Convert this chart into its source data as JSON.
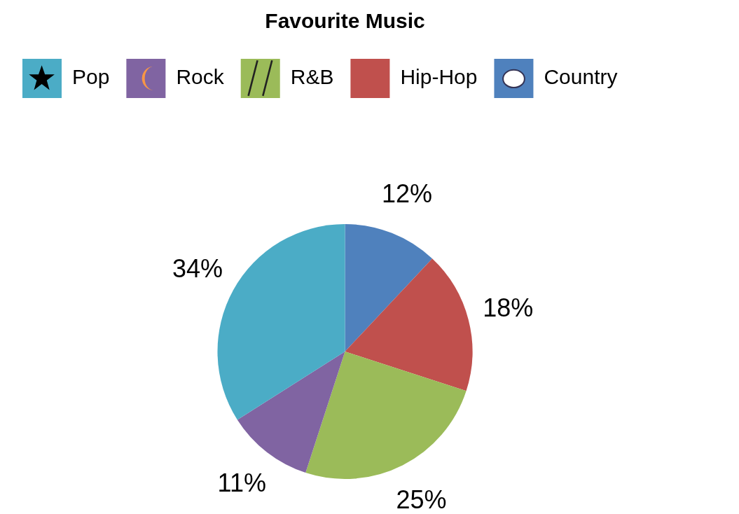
{
  "chart_data": {
    "type": "pie",
    "title": "Favourite Music",
    "categories": [
      "Pop",
      "Rock",
      "R&B",
      "Hip-Hop",
      "Country"
    ],
    "values": [
      34,
      11,
      25,
      18,
      12
    ],
    "colors": [
      "#4bacc6",
      "#8064a2",
      "#9bbb59",
      "#c0504d",
      "#4f81bd"
    ],
    "value_labels": [
      "34%",
      "11%",
      "25%",
      "18%",
      "12%"
    ],
    "legend": "top"
  }
}
